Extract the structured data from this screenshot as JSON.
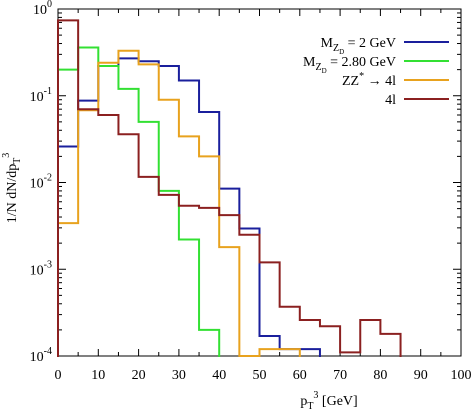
{
  "chart_data": {
    "type": "line",
    "step": true,
    "title": "",
    "xlabel": "p_T^3 [GeV]",
    "ylabel": "1/N dN/dp_T^3",
    "xlim": [
      0,
      100
    ],
    "ylim": [
      0.0001,
      1
    ],
    "yscale": "log",
    "grid": false,
    "legend_position": "top-right",
    "x_ticks": [
      0,
      10,
      20,
      30,
      40,
      50,
      60,
      70,
      80,
      90,
      100
    ],
    "x_tick_labels": [
      "0",
      "10",
      "20",
      "30",
      "40",
      "50",
      "60",
      "70",
      "80",
      "90",
      "100"
    ],
    "y_ticks": [
      0.0001,
      0.001,
      0.01,
      0.1,
      1
    ],
    "y_tick_labels": [
      {
        "base": "10",
        "exp": "-4"
      },
      {
        "base": "10",
        "exp": "-3"
      },
      {
        "base": "10",
        "exp": "-2"
      },
      {
        "base": "10",
        "exp": "-1"
      },
      {
        "base": "10",
        "exp": "0"
      }
    ],
    "bin_edges": [
      0,
      5,
      10,
      15,
      20,
      25,
      30,
      35,
      40,
      45,
      50,
      55,
      60,
      65,
      70,
      75,
      80,
      85,
      90,
      95,
      100
    ],
    "series": [
      {
        "name": "M_{Z_D} = 2 GeV",
        "color": "#1a1f9c",
        "values": [
          0.026,
          0.088,
          0.22,
          0.27,
          0.25,
          0.22,
          0.15,
          0.065,
          0.0085,
          0.00295,
          0.00017,
          0.00012,
          0.00012,
          null,
          null,
          null,
          null,
          null,
          null,
          null
        ]
      },
      {
        "name": "M_{Z_D} = 2.80 GeV",
        "color": "#33e033",
        "values": [
          0.2,
          0.36,
          0.22,
          0.12,
          0.05,
          0.008,
          0.0022,
          0.0002,
          null,
          null,
          null,
          null,
          null,
          null,
          null,
          null,
          null,
          null,
          null,
          null
        ]
      },
      {
        "name": "ZZ^* → 4l",
        "color": "#e8a21e",
        "values": [
          0.0034,
          0.068,
          0.24,
          0.33,
          0.23,
          0.09,
          0.034,
          0.02,
          0.0018,
          0.0001,
          0.00012,
          0.00012,
          null,
          null,
          null,
          null,
          null,
          null,
          null,
          null
        ]
      },
      {
        "name": "4l",
        "color": "#8b2020",
        "values": [
          0.74,
          0.07,
          0.06,
          0.036,
          0.0116,
          0.0072,
          0.0054,
          0.0051,
          0.0042,
          0.0025,
          0.0012,
          0.00037,
          0.00026,
          0.00022,
          0.00011,
          0.00026,
          0.00018,
          null,
          null,
          null
        ]
      }
    ]
  },
  "legend": {
    "entries": [
      {
        "main": "M",
        "sub": "Z",
        "subsub": "D",
        "rest": " = 2 GeV",
        "color": "#1a1f9c"
      },
      {
        "main": "M",
        "sub": "Z",
        "subsub": "D",
        "rest": " = 2.80 GeV",
        "color": "#33e033"
      },
      {
        "main": "ZZ",
        "sup": "*",
        "rest": " → 4l",
        "color": "#e8a21e"
      },
      {
        "main": "4l",
        "color": "#8b2020"
      }
    ]
  },
  "axis_text": {
    "xlabel_main": "p",
    "xlabel_sub": "T",
    "xlabel_sup": "3",
    "xlabel_rest": " [GeV]",
    "ylabel_main": "1/N dN/dp",
    "ylabel_sub": "T",
    "ylabel_sup": "3"
  }
}
